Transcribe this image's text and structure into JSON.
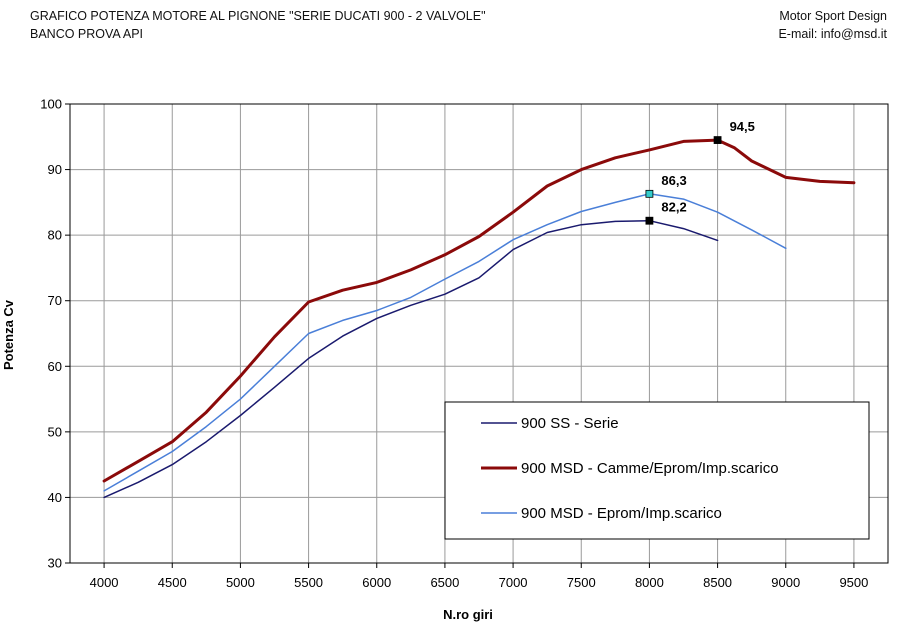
{
  "header": {
    "title_line1": "GRAFICO POTENZA MOTORE AL PIGNONE \"SERIE DUCATI 900  - 2 VALVOLE\"",
    "title_line2": "BANCO PROVA API",
    "company": "Motor Sport Design",
    "email": "E-mail: info@msd.it"
  },
  "chart_data": {
    "type": "line",
    "xlabel": "N.ro giri",
    "ylabel": "Potenza Cv",
    "xlim": [
      3750,
      9750
    ],
    "ylim": [
      30,
      100
    ],
    "xticks": [
      4000,
      4500,
      5000,
      5500,
      6000,
      6500,
      7000,
      7500,
      8000,
      8500,
      9000,
      9500
    ],
    "yticks": [
      30,
      40,
      50,
      60,
      70,
      80,
      90,
      100
    ],
    "grid": true,
    "legend_position": "bottom-right",
    "series": [
      {
        "name": "900 SS - Serie",
        "color": "#1a1a6e",
        "width": 1.5,
        "x": [
          4000,
          4250,
          4500,
          4750,
          5000,
          5250,
          5500,
          5750,
          6000,
          6250,
          6500,
          6750,
          7000,
          7250,
          7500,
          7750,
          8000,
          8250,
          8500
        ],
        "y": [
          40.0,
          42.3,
          45.0,
          48.5,
          52.5,
          56.8,
          61.2,
          64.6,
          67.3,
          69.3,
          71.0,
          73.5,
          77.8,
          80.4,
          81.6,
          82.1,
          82.2,
          81.0,
          79.2
        ]
      },
      {
        "name": "900 MSD - Camme/Eprom/Imp.scarico",
        "color": "#8b0a0a",
        "width": 3,
        "x": [
          4000,
          4250,
          4500,
          4750,
          5000,
          5250,
          5500,
          5750,
          6000,
          6250,
          6500,
          6750,
          7000,
          7250,
          7500,
          7750,
          8000,
          8250,
          8500,
          8625,
          8750,
          9000,
          9250,
          9500
        ],
        "y": [
          42.5,
          45.5,
          48.5,
          53.0,
          58.5,
          64.5,
          69.8,
          71.6,
          72.8,
          74.7,
          77.0,
          79.8,
          83.5,
          87.5,
          90.0,
          91.8,
          93.0,
          94.3,
          94.5,
          93.3,
          91.3,
          88.8,
          88.2,
          88.0
        ]
      },
      {
        "name": "900 MSD - Eprom/Imp.scarico",
        "color": "#4a7fd8",
        "width": 1.5,
        "x": [
          4000,
          4250,
          4500,
          4750,
          5000,
          5250,
          5500,
          5750,
          6000,
          6250,
          6500,
          6750,
          7000,
          7250,
          7500,
          7750,
          8000,
          8250,
          8500,
          8750,
          9000
        ],
        "y": [
          41.0,
          44.0,
          47.0,
          50.8,
          55.0,
          60.0,
          65.0,
          67.0,
          68.5,
          70.5,
          73.3,
          76.0,
          79.3,
          81.6,
          83.6,
          85.0,
          86.3,
          85.5,
          83.5,
          80.8,
          78.0
        ]
      }
    ],
    "annotations": [
      {
        "text": "94,5",
        "x": 8500,
        "y": 94.5,
        "marker_color": "#000000"
      },
      {
        "text": "86,3",
        "x": 8000,
        "y": 86.3,
        "marker_color": "#33cccc"
      },
      {
        "text": "82,2",
        "x": 8000,
        "y": 82.2,
        "marker_color": "#000000"
      }
    ]
  }
}
